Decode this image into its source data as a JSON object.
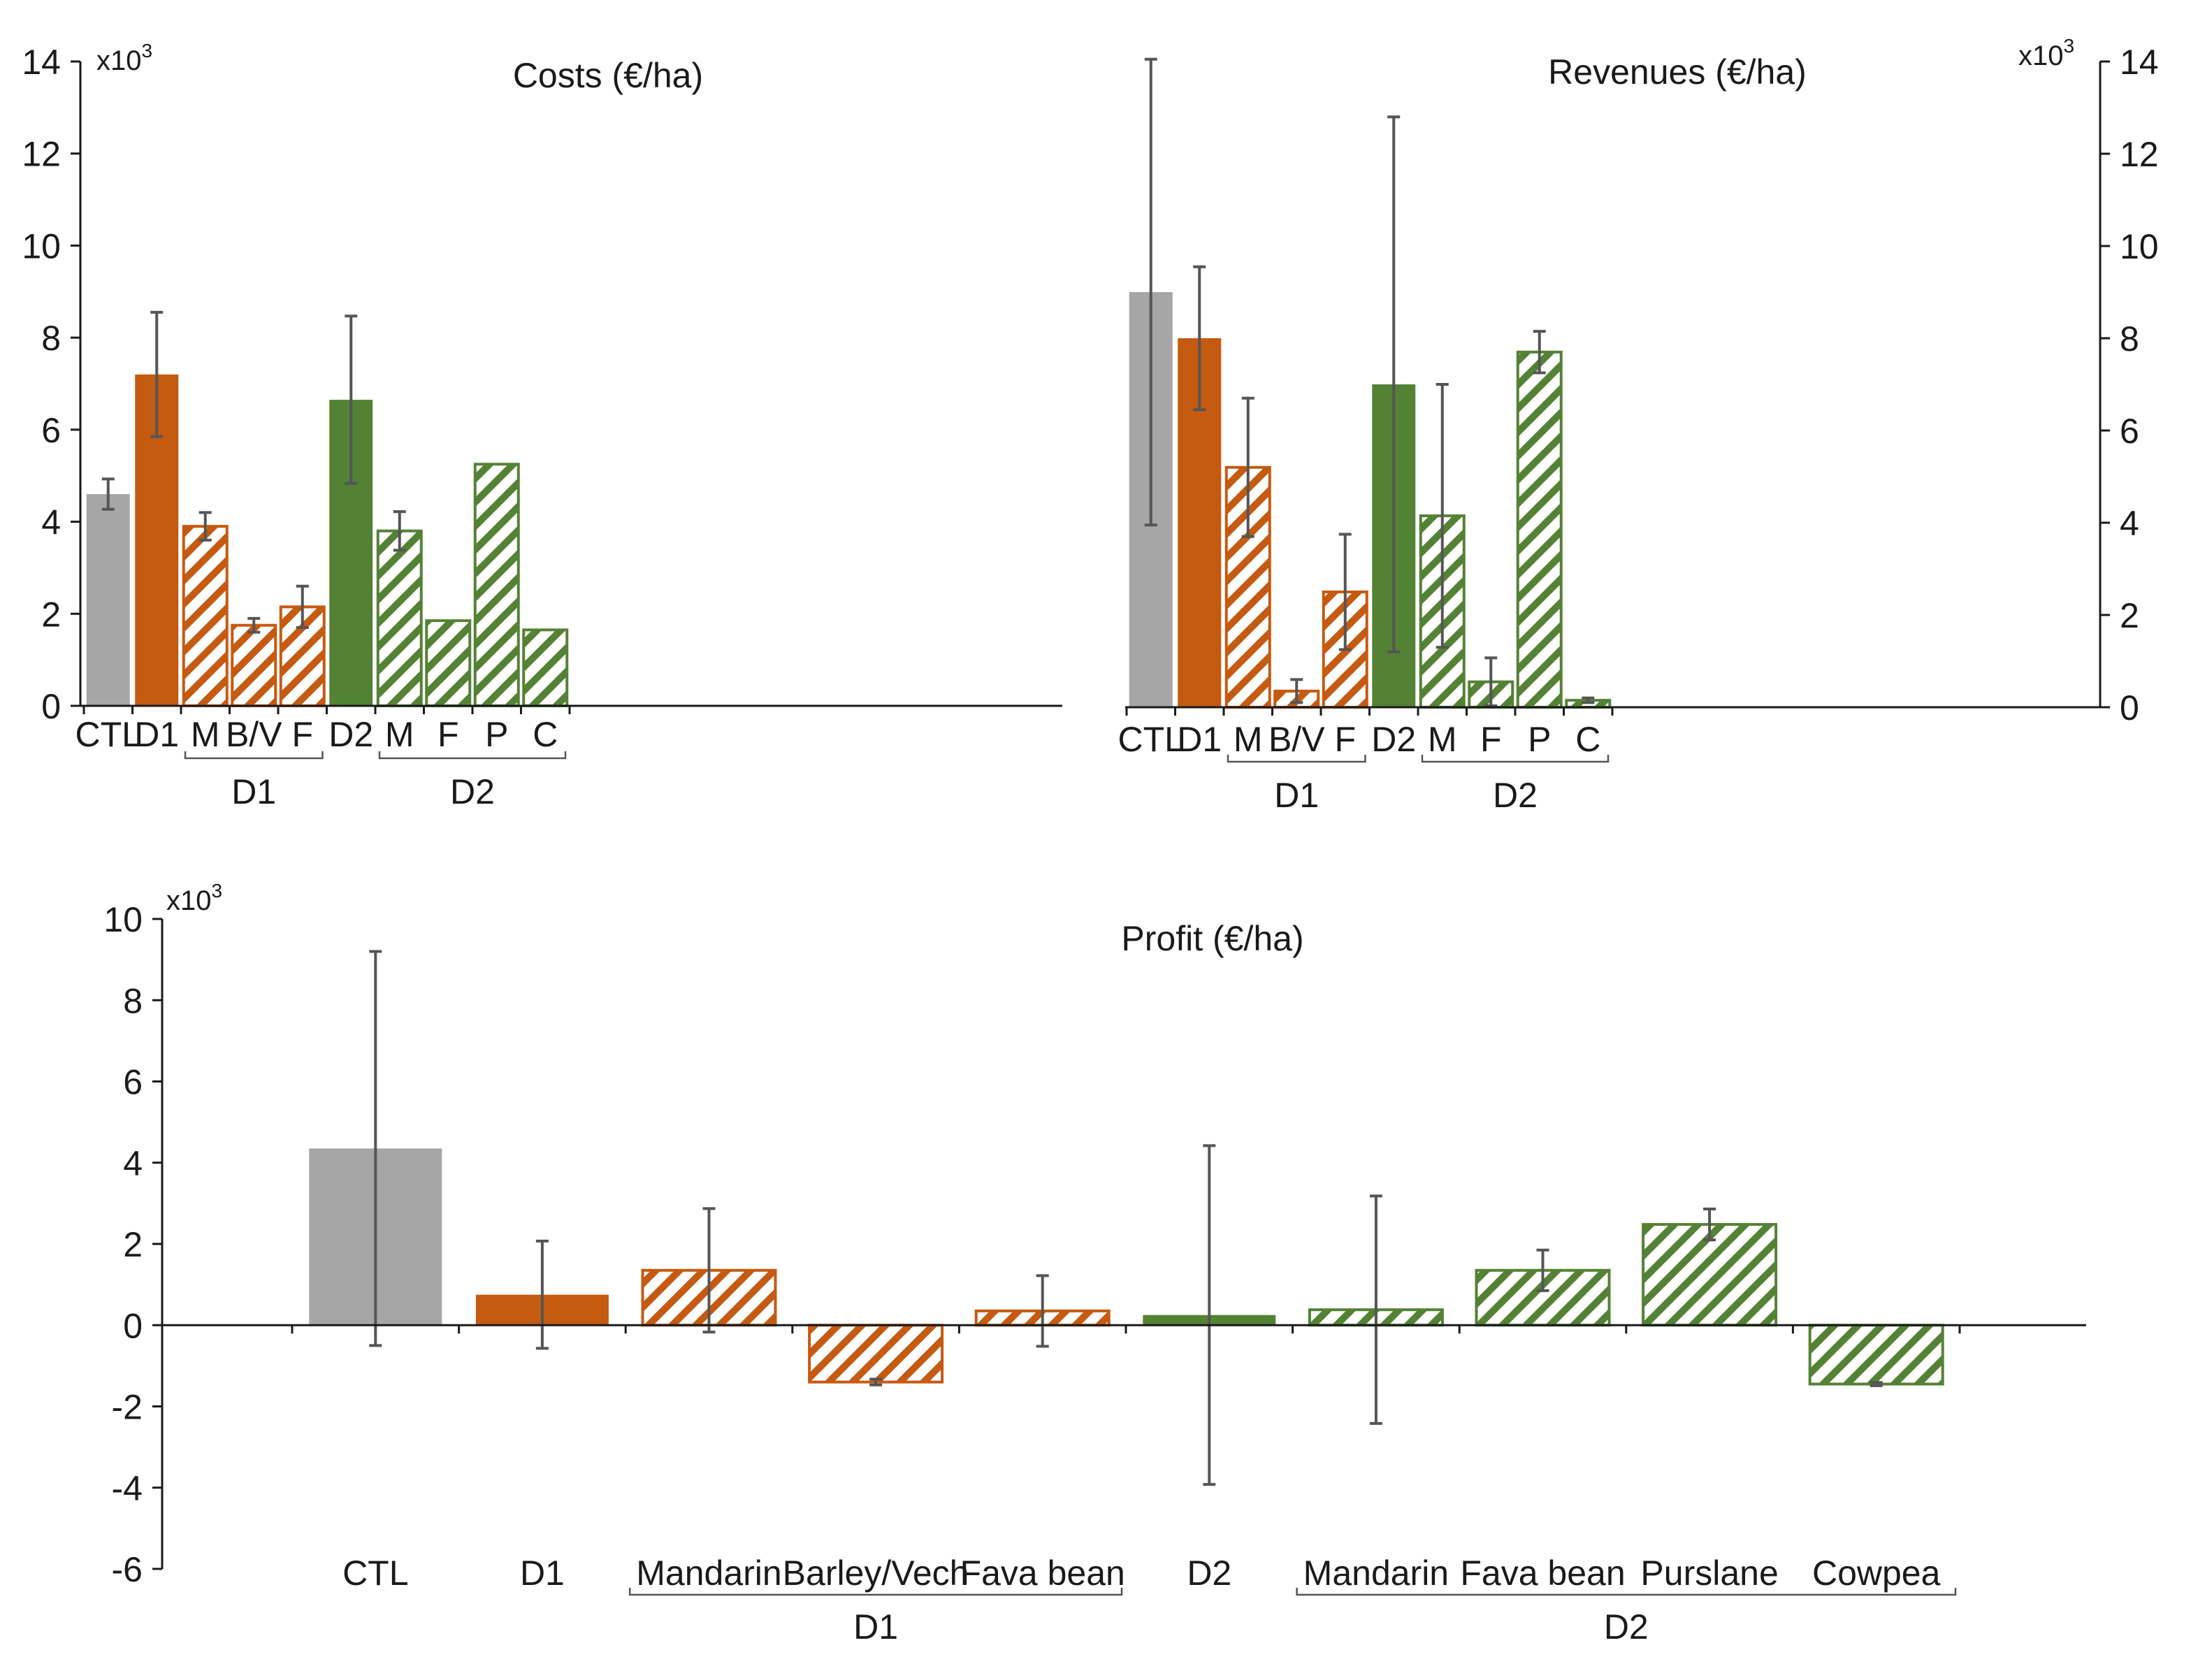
{
  "colors": {
    "ctl": "#a6a6a6",
    "d1": "#c55a11",
    "d2": "#548235",
    "error_bar": "#555555",
    "axis": "#1a1a1a"
  },
  "chart_data": [
    {
      "id": "costs",
      "type": "bar",
      "title": "Costs (€/ha)",
      "scale_label": "x10",
      "scale_exp": "3",
      "ylim": [
        0,
        14
      ],
      "yticks": [
        0,
        2,
        4,
        6,
        8,
        10,
        12,
        14
      ],
      "y_axis_side": "left",
      "categories": [
        "CTL",
        "D1",
        "M",
        "B/V",
        "F",
        "D2",
        "M",
        "F",
        "P",
        "C"
      ],
      "values": [
        4.6,
        7.2,
        3.9,
        1.75,
        2.15,
        6.65,
        3.8,
        1.85,
        5.25,
        1.65
      ],
      "errors": [
        0.33,
        1.35,
        0.3,
        0.15,
        0.45,
        1.82,
        0.42,
        0,
        0,
        0
      ],
      "styles": [
        "ctl",
        "d1",
        "d1-hatch",
        "d1-hatch",
        "d1-hatch",
        "d2",
        "d2-hatch",
        "d2-hatch",
        "d2-hatch",
        "d2-hatch"
      ],
      "groups": [
        {
          "label": "D1",
          "from": 2,
          "to": 4
        },
        {
          "label": "D2",
          "from": 6,
          "to": 9
        }
      ]
    },
    {
      "id": "revenues",
      "type": "bar",
      "title": "Revenues (€/ha)",
      "scale_label": "x10",
      "scale_exp": "3",
      "ylim": [
        0,
        14
      ],
      "yticks": [
        0,
        2,
        4,
        6,
        8,
        10,
        12,
        14
      ],
      "y_axis_side": "right",
      "categories": [
        "CTL",
        "D1",
        "M",
        "B/V",
        "F",
        "D2",
        "M",
        "F",
        "P",
        "C"
      ],
      "values": [
        9.0,
        8.0,
        5.2,
        0.35,
        2.5,
        7.0,
        4.15,
        0.55,
        7.7,
        0.15
      ],
      "errors": [
        5.05,
        1.55,
        1.5,
        0.25,
        1.25,
        5.8,
        2.85,
        0.52,
        0.45,
        0.05
      ],
      "styles": [
        "ctl",
        "d1",
        "d1-hatch",
        "d1-hatch",
        "d1-hatch",
        "d2",
        "d2-hatch",
        "d2-hatch",
        "d2-hatch",
        "d2-hatch"
      ],
      "groups": [
        {
          "label": "D1",
          "from": 2,
          "to": 4
        },
        {
          "label": "D2",
          "from": 6,
          "to": 9
        }
      ]
    },
    {
      "id": "profit",
      "type": "bar",
      "title": "Profit (€/ha)",
      "scale_label": "x10",
      "scale_exp": "3",
      "ylim": [
        -6,
        10
      ],
      "yticks": [
        -6,
        -4,
        -2,
        0,
        2,
        4,
        6,
        8,
        10
      ],
      "y_axis_side": "left",
      "categories": [
        "CTL",
        "D1",
        "Mandarin",
        "Barley/Vech",
        "Fava bean",
        "D2",
        "Mandarin",
        "Fava bean",
        "Purslane",
        "Cowpea"
      ],
      "values": [
        4.35,
        0.75,
        1.35,
        -1.4,
        0.35,
        0.25,
        0.38,
        1.35,
        2.48,
        -1.45
      ],
      "errors": [
        4.85,
        1.32,
        1.52,
        0.07,
        0.87,
        4.17,
        2.8,
        0.5,
        0.38,
        0.04
      ],
      "styles": [
        "ctl",
        "d1",
        "d1-hatch",
        "d1-hatch",
        "d1-hatch",
        "d2",
        "d2-hatch",
        "d2-hatch",
        "d2-hatch",
        "d2-hatch"
      ],
      "groups": [
        {
          "label": "D1",
          "from": 2,
          "to": 4
        },
        {
          "label": "D2",
          "from": 6,
          "to": 9
        }
      ]
    }
  ]
}
